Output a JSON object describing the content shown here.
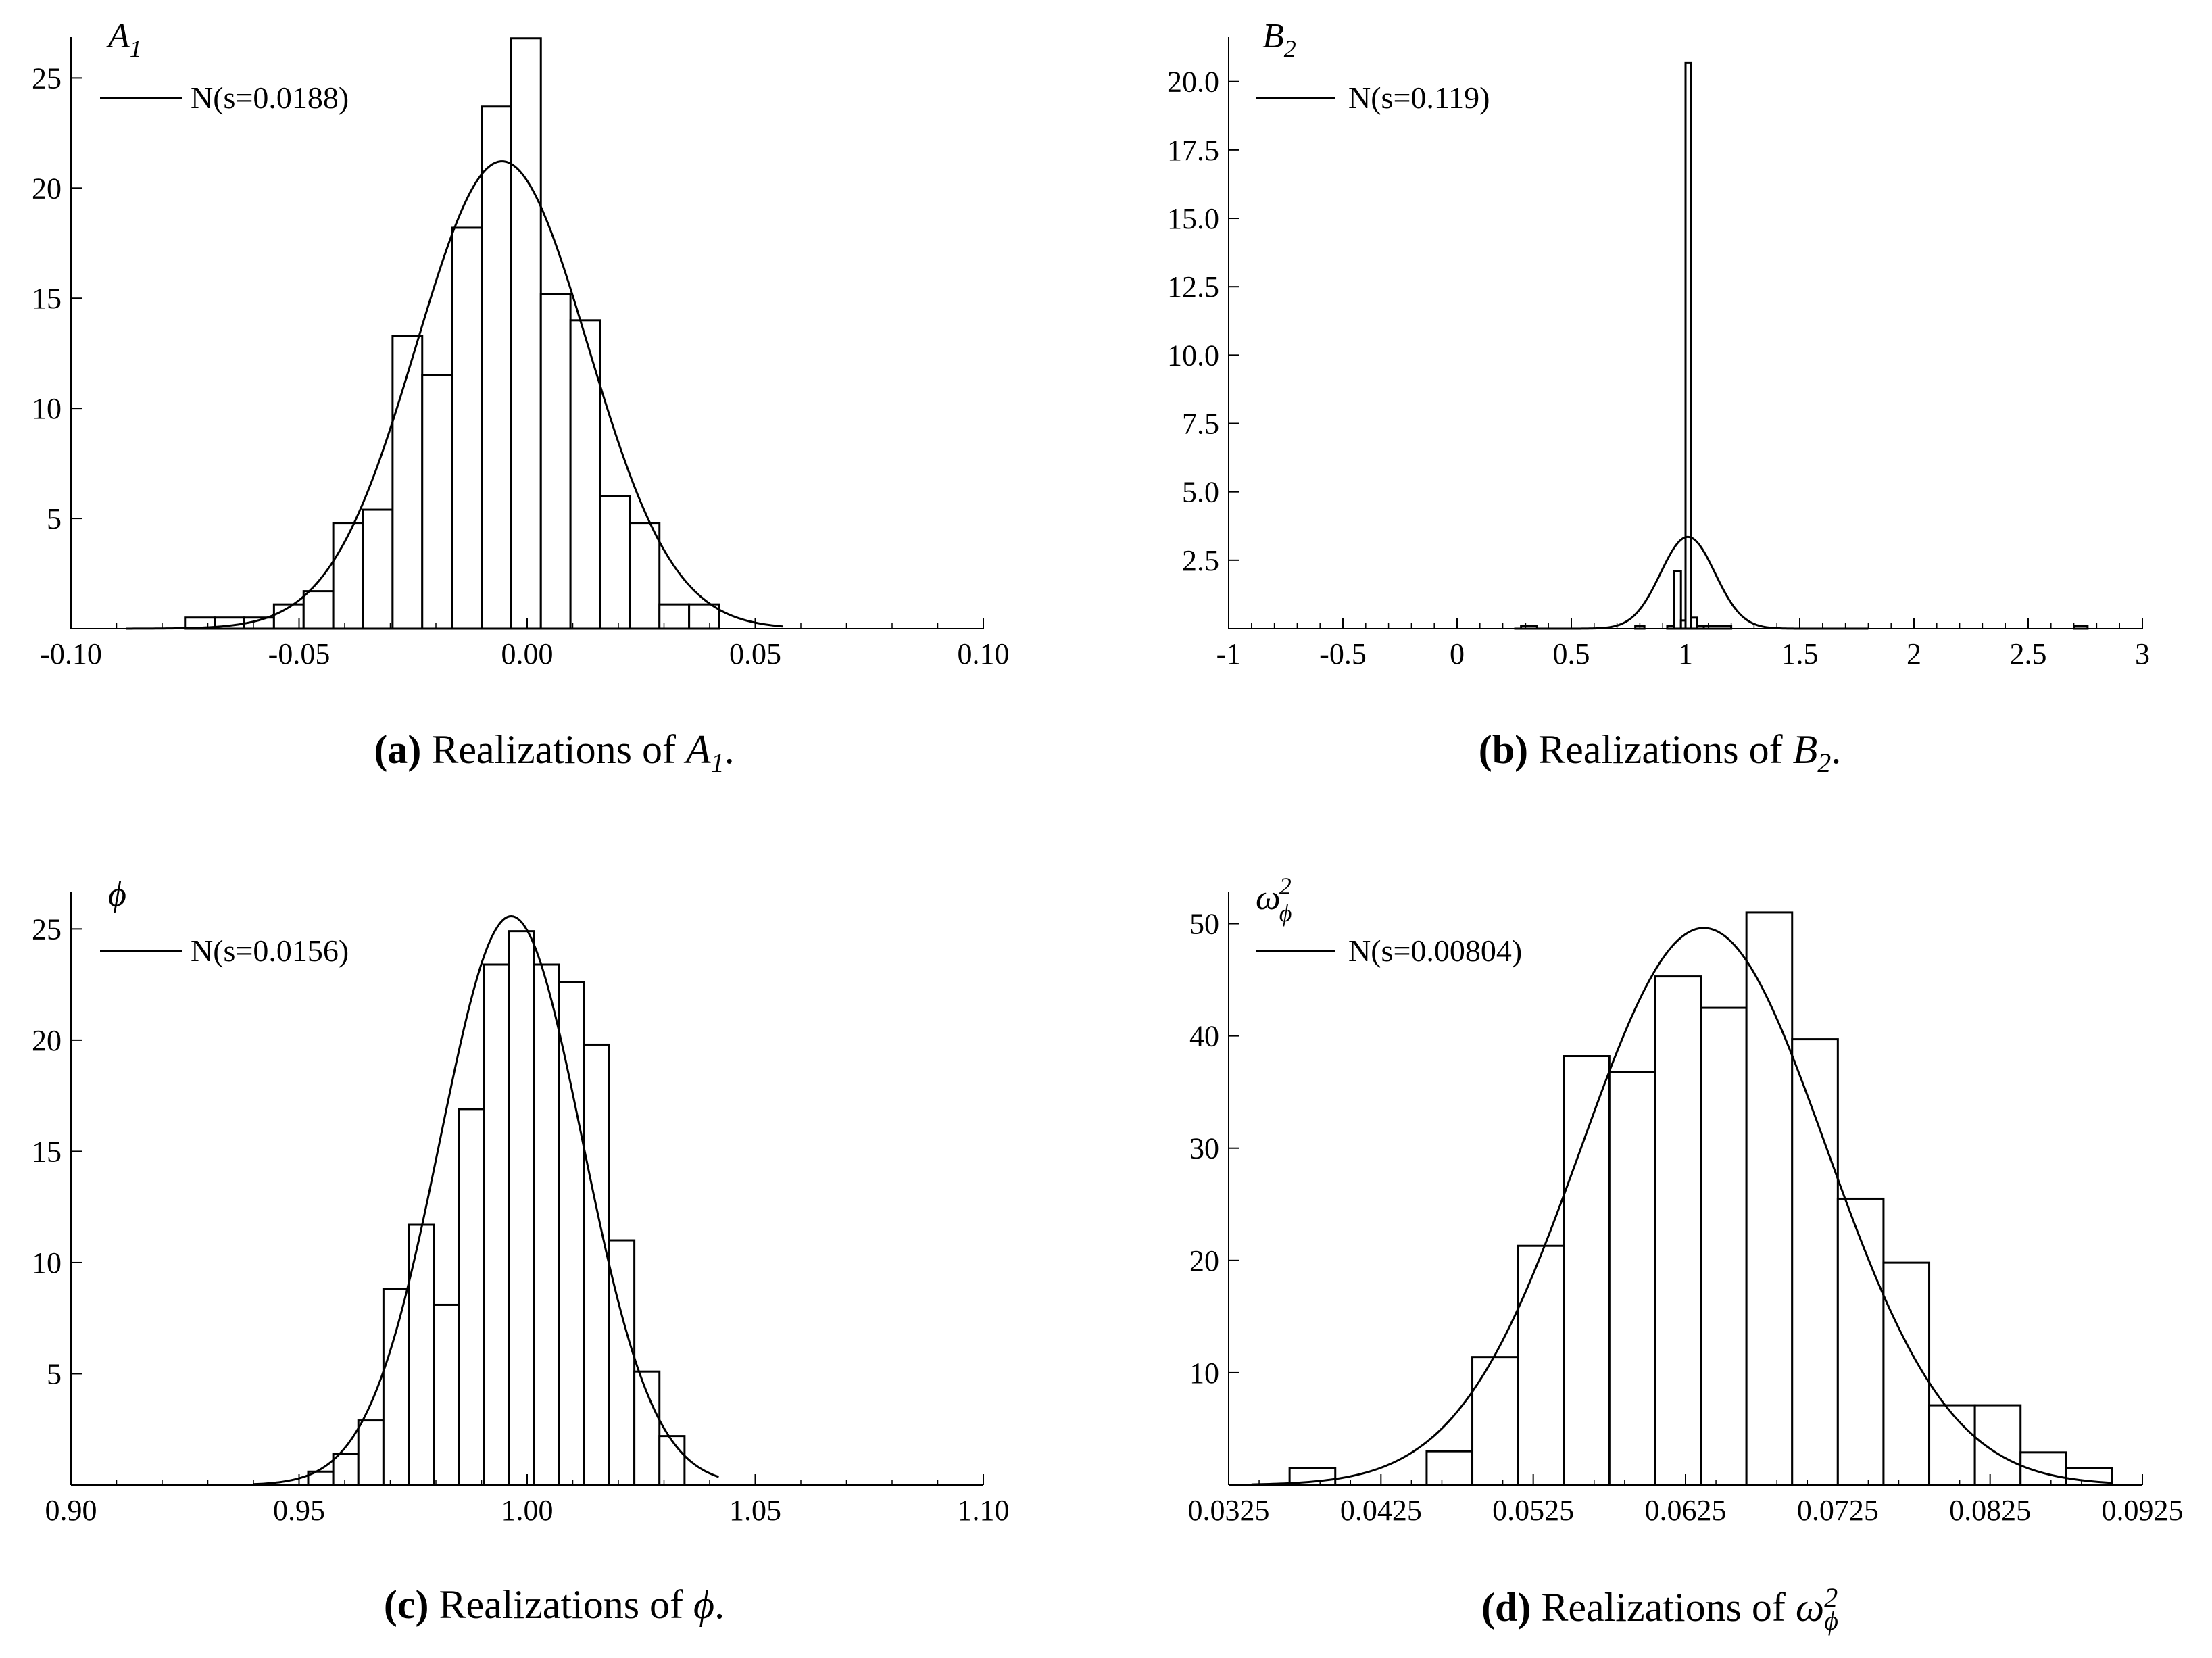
{
  "figure": {
    "panels": [
      {
        "id": "a",
        "tag": "(a)",
        "caption_text": "Realizations of",
        "caption_var": "A",
        "caption_sub": "1",
        "caption_sup": "",
        "caption_end": ".",
        "var_label": "A",
        "var_sub": "1",
        "var_sup": "",
        "legend_label": "N(s=0.0188)"
      },
      {
        "id": "b",
        "tag": "(b)",
        "caption_text": "Realizations of",
        "caption_var": "B",
        "caption_sub": "2",
        "caption_sup": "",
        "caption_end": ".",
        "var_label": "B",
        "var_sub": "2",
        "var_sup": "",
        "legend_label": "N(s=0.119)"
      },
      {
        "id": "c",
        "tag": "(c)",
        "caption_text": "Realizations of",
        "caption_var": "ϕ",
        "caption_sub": "",
        "caption_sup": "",
        "caption_end": ".",
        "var_label": "ϕ",
        "var_sub": "",
        "var_sup": "",
        "legend_label": "N(s=0.0156)"
      },
      {
        "id": "d",
        "tag": "(d)",
        "caption_text": "Realizations of",
        "caption_var": "ω",
        "caption_sub": "ϕ",
        "caption_sup": "2",
        "caption_end": "",
        "var_label": "ω",
        "var_sub": "ϕ",
        "var_sup": "2",
        "legend_label": "N(s=0.00804)"
      }
    ]
  },
  "chart_data": [
    {
      "type": "bar",
      "subtype": "histogram",
      "title": "A1",
      "legend": "N(s=0.0188)",
      "xlim": [
        -0.1,
        0.1
      ],
      "ylim": [
        0,
        26.7
      ],
      "xticks": [
        -0.1,
        -0.05,
        0.0,
        0.05,
        0.1
      ],
      "xtick_labels": [
        "-0.10",
        "-0.05",
        "0.00",
        "0.05",
        "0.10"
      ],
      "yticks": [
        5,
        10,
        15,
        20,
        25
      ],
      "ytick_labels": [
        "5",
        "10",
        "15",
        "20",
        "25"
      ],
      "bin_edges": [
        -0.075,
        -0.0685,
        -0.062,
        -0.0555,
        -0.049,
        -0.0425,
        -0.036,
        -0.0295,
        -0.023,
        -0.0165,
        -0.01,
        -0.0035,
        0.003,
        0.0095,
        0.016,
        0.0225,
        0.029,
        0.0355,
        0.042
      ],
      "values": [
        0.5,
        0.5,
        0.5,
        1.1,
        1.7,
        4.8,
        5.4,
        13.3,
        11.5,
        18.2,
        23.7,
        26.8,
        15.2,
        14.0,
        6.0,
        4.8,
        1.1,
        1.1
      ],
      "normal_curve": {
        "mean": -0.0055,
        "sd": 0.0188,
        "x_range": [
          -0.088,
          0.056
        ]
      }
    },
    {
      "type": "bar",
      "subtype": "histogram",
      "title": "B2",
      "legend": "N(s=0.119)",
      "xlim": [
        -1,
        3
      ],
      "ylim": [
        0,
        21.5
      ],
      "xticks": [
        -1,
        -0.5,
        0,
        0.5,
        1,
        1.5,
        2,
        2.5,
        3
      ],
      "xtick_labels": [
        "-1",
        "-0.5",
        "0",
        "0.5",
        "1",
        "1.5",
        "2",
        "2.5",
        "3"
      ],
      "yticks": [
        2.5,
        5.0,
        7.5,
        10.0,
        12.5,
        15.0,
        17.5,
        20.0
      ],
      "ytick_labels": [
        "2.5",
        "5.0",
        "7.5",
        "10.0",
        "12.5",
        "15.0",
        "17.5",
        "20.0"
      ],
      "bin_edges": [
        0.28,
        0.35,
        0.78,
        0.82,
        0.92,
        0.95,
        0.98,
        1.0,
        1.025,
        1.05,
        1.08,
        1.2,
        2.7,
        2.76
      ],
      "values": [
        0.1,
        0,
        0.1,
        0,
        0.1,
        2.1,
        0.3,
        20.7,
        0.4,
        0.1,
        0.1,
        0,
        0.1
      ],
      "normal_curve": {
        "mean": 1.01,
        "sd": 0.119,
        "x_range": [
          0.25,
          1.8
        ]
      }
    },
    {
      "type": "bar",
      "subtype": "histogram",
      "title": "ϕ",
      "legend": "N(s=0.0156)",
      "xlim": [
        0.9,
        1.1
      ],
      "ylim": [
        0,
        26.5
      ],
      "xticks": [
        0.9,
        0.95,
        1.0,
        1.05,
        1.1
      ],
      "xtick_labels": [
        "0.90",
        "0.95",
        "1.00",
        "1.05",
        "1.10"
      ],
      "yticks": [
        5,
        10,
        15,
        20,
        25
      ],
      "ytick_labels": [
        "5",
        "10",
        "15",
        "20",
        "25"
      ],
      "bin_edges": [
        0.952,
        0.9575,
        0.963,
        0.9685,
        0.974,
        0.9795,
        0.985,
        0.9905,
        0.996,
        1.0015,
        1.007,
        1.0125,
        1.018,
        1.0235,
        1.029,
        1.0345
      ],
      "values": [
        0.6,
        1.4,
        2.9,
        8.8,
        11.7,
        8.1,
        16.9,
        23.4,
        24.9,
        23.4,
        22.6,
        19.8,
        11.0,
        5.1,
        2.2
      ],
      "normal_curve": {
        "mean": 0.9965,
        "sd": 0.0156,
        "x_range": [
          0.94,
          1.042
        ]
      }
    },
    {
      "type": "bar",
      "subtype": "histogram",
      "title": "ω²ϕ",
      "legend": "N(s=0.00804)",
      "xlim": [
        0.0325,
        0.0925
      ],
      "ylim": [
        0,
        52.5
      ],
      "xticks": [
        0.0325,
        0.0425,
        0.0525,
        0.0625,
        0.0725,
        0.0825,
        0.0925
      ],
      "xtick_labels": [
        "0.0325",
        "0.0425",
        "0.0525",
        "0.0625",
        "0.0725",
        "0.0825",
        "0.0925"
      ],
      "yticks": [
        10,
        20,
        30,
        40,
        50
      ],
      "ytick_labels": [
        "10",
        "20",
        "30",
        "40",
        "50"
      ],
      "bin_edges": [
        0.0365,
        0.0395,
        0.0425,
        0.0455,
        0.0485,
        0.0515,
        0.0545,
        0.0575,
        0.0605,
        0.0635,
        0.0665,
        0.0695,
        0.0725,
        0.0755,
        0.0785,
        0.0815,
        0.0845,
        0.0875,
        0.0905
      ],
      "values": [
        1.5,
        0,
        0,
        3.0,
        11.4,
        21.3,
        38.2,
        36.8,
        45.3,
        42.5,
        51.0,
        39.7,
        25.5,
        19.8,
        7.1,
        7.1,
        2.9,
        1.5
      ],
      "normal_curve": {
        "mean": 0.0637,
        "sd": 0.00804,
        "x_range": [
          0.034,
          0.0905
        ]
      }
    }
  ]
}
